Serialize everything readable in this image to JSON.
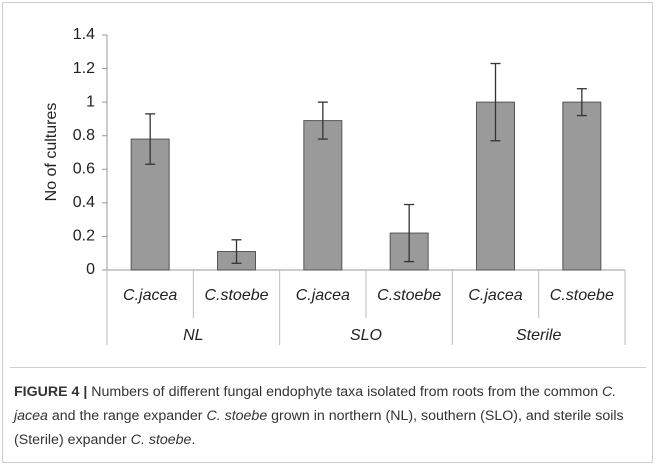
{
  "chart_data": {
    "type": "bar",
    "ylabel": "No of cultures",
    "categories": [
      "C.jacea",
      "C.stoebe",
      "C.jacea",
      "C.stoebe",
      "C.jacea",
      "C.stoebe"
    ],
    "groups": [
      "NL",
      "SLO",
      "Sterile"
    ],
    "values": [
      0.78,
      0.11,
      0.89,
      0.22,
      1.0,
      1.0
    ],
    "errors": [
      0.15,
      0.07,
      0.11,
      0.17,
      0.23,
      0.08
    ],
    "color": "#9a9a9a",
    "ylim": [
      0,
      1.4
    ],
    "yticks": [
      0,
      0.2,
      0.4,
      0.6,
      0.8,
      1,
      1.2,
      1.4
    ]
  },
  "caption": {
    "label": "FIGURE 4 |",
    "parts": [
      "Numbers of different fungal endophyte taxa isolated from roots from the common ",
      "C. jacea",
      " and the range expander ",
      "C. stoebe",
      " grown in northern (NL), southern (SLO), and sterile soils (Sterile) expander ",
      "C. stoebe",
      "."
    ]
  }
}
